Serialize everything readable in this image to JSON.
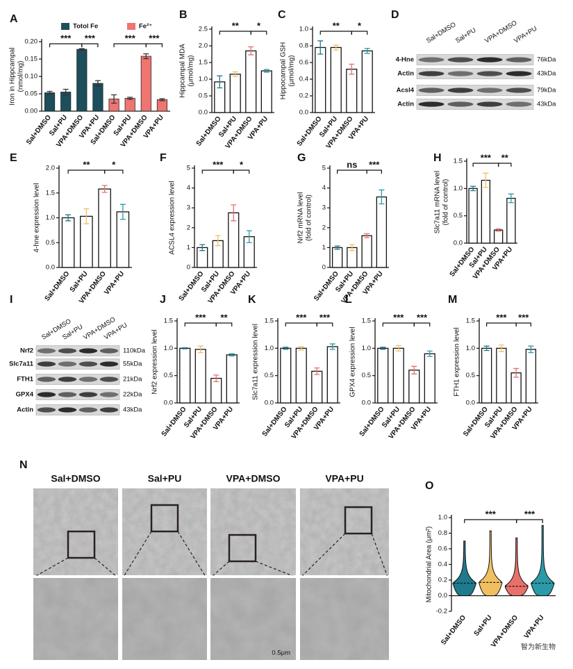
{
  "chart_data": [
    {
      "type": "bar",
      "panel": "A",
      "ylabel": [
        "Iron in Hippcampal",
        "(nmol/mg)"
      ],
      "categories": [
        "Sal+DMSO",
        "Sal+PU",
        "VPA+DMSO",
        "VPA+PU",
        "Sal+DMSO",
        "Sal+PU",
        "VPA+DMSO",
        "VPA+PU"
      ],
      "series": [
        {
          "name": "Totol Fe",
          "color": "#1d4e5c",
          "values": [
            0.053,
            0.055,
            0.178,
            0.08,
            null,
            null,
            null,
            null
          ],
          "errors": [
            0.004,
            0.008,
            0.002,
            0.008,
            null,
            null,
            null,
            null
          ]
        },
        {
          "name": "Fe²⁺",
          "color": "#f07470",
          "values": [
            null,
            null,
            null,
            null,
            0.035,
            0.037,
            0.158,
            0.033
          ],
          "errors": [
            null,
            null,
            null,
            null,
            0.012,
            0.003,
            0.007,
            0.003
          ]
        }
      ],
      "ylim": [
        0,
        0.2
      ],
      "yticks": [
        {
          "value": 0,
          "label": "0.00"
        },
        0.05,
        {
          "value": 0.1,
          "label": "0.10"
        },
        0.15,
        {
          "value": 0.2,
          "label": "0.20"
        }
      ],
      "sig": [
        {
          "text": "***",
          "between": [
            0,
            2
          ]
        },
        {
          "text": "***",
          "between": [
            2,
            3
          ]
        },
        {
          "text": "***",
          "between": [
            4,
            6
          ]
        },
        {
          "text": "***",
          "between": [
            6,
            7
          ]
        }
      ]
    },
    {
      "type": "bar",
      "panel": "B",
      "ylabel": [
        "Hippcampal MDA",
        "(μmol/mg)"
      ],
      "categories": [
        "Sal+DMSO",
        "Sal+PU",
        "VPA+DMSO",
        "VPA+PU"
      ],
      "values": [
        0.92,
        1.15,
        1.85,
        1.25
      ],
      "errors": [
        0.18,
        0.07,
        0.12,
        0.04
      ],
      "colors": [
        "#1e7a8c",
        "#f0c060",
        "#e8706a",
        "#2a9aa8"
      ],
      "ylim": [
        0,
        2.5
      ],
      "yticks": [
        {
          "value": 0,
          "label": "0.0"
        },
        0.5,
        {
          "value": 1,
          "label": "1.0"
        },
        1.5,
        {
          "value": 2,
          "label": "2.0"
        },
        2.5
      ],
      "sig": [
        {
          "text": "**",
          "between": [
            0,
            2
          ]
        },
        {
          "text": "*",
          "between": [
            2,
            3
          ]
        }
      ]
    },
    {
      "type": "bar",
      "panel": "C",
      "ylabel": [
        "Hippocampal GSH",
        "(μmol/mg)"
      ],
      "categories": [
        "Sal+DMSO",
        "Sal+PU",
        "VPA+DMSO",
        "VPA+PU"
      ],
      "values": [
        0.78,
        0.78,
        0.52,
        0.74
      ],
      "errors": [
        0.08,
        0.03,
        0.06,
        0.03
      ],
      "colors": [
        "#1e7a8c",
        "#f0c060",
        "#e8706a",
        "#2a9aa8"
      ],
      "ylim": [
        0,
        1
      ],
      "yticks": [
        {
          "value": 0,
          "label": "0.0"
        },
        0.2,
        0.4,
        0.6,
        0.8,
        {
          "value": 1,
          "label": "1.0"
        }
      ],
      "sig": [
        {
          "text": "**",
          "between": [
            0,
            2
          ]
        },
        {
          "text": "*",
          "between": [
            2,
            3
          ]
        }
      ]
    },
    {
      "type": "bar",
      "panel": "E",
      "ylabel": [
        "4-hne expression level"
      ],
      "categories": [
        "Sal+DMSO",
        "Sal+PU",
        "VPA+DMSO",
        "VPA+PU"
      ],
      "values": [
        1.0,
        1.03,
        1.58,
        1.12
      ],
      "errors": [
        0.06,
        0.15,
        0.07,
        0.15
      ],
      "colors": [
        "#1e7a8c",
        "#f0c060",
        "#e8706a",
        "#2a9aa8"
      ],
      "ylim": [
        0,
        2
      ],
      "yticks": [
        {
          "value": 0,
          "label": "0.0"
        },
        0.5,
        {
          "value": 1,
          "label": "1.0"
        },
        1.5,
        {
          "value": 2,
          "label": "2.0"
        }
      ],
      "sig": [
        {
          "text": "**",
          "between": [
            0,
            2
          ]
        },
        {
          "text": "*",
          "between": [
            2,
            3
          ]
        }
      ]
    },
    {
      "type": "bar",
      "panel": "F",
      "ylabel": [
        "ACSL4 expression level"
      ],
      "categories": [
        "Sal+DMSO",
        "Sal+PU",
        "VPA+DMSO",
        "VPA+PU"
      ],
      "values": [
        1.0,
        1.35,
        2.75,
        1.55
      ],
      "errors": [
        0.15,
        0.25,
        0.4,
        0.3
      ],
      "colors": [
        "#1e7a8c",
        "#f0c060",
        "#e8706a",
        "#2a9aa8"
      ],
      "ylim": [
        0,
        5
      ],
      "yticks": [
        0,
        1,
        2,
        3,
        4,
        5
      ],
      "sig": [
        {
          "text": "***",
          "between": [
            0,
            2
          ]
        },
        {
          "text": "*",
          "between": [
            2,
            3
          ]
        }
      ]
    },
    {
      "type": "bar",
      "panel": "G",
      "ylabel": [
        "Nrf2 mRNA level",
        "(fold of control)"
      ],
      "categories": [
        "Sal+DMSO",
        "Sal+PU",
        "VPA+DMSO",
        "VPA+PU"
      ],
      "values": [
        1.0,
        1.0,
        1.6,
        3.55
      ],
      "errors": [
        0.08,
        0.15,
        0.1,
        0.35
      ],
      "colors": [
        "#1e7a8c",
        "#f0c060",
        "#e8706a",
        "#2a9aa8"
      ],
      "ylim": [
        0,
        5
      ],
      "yticks": [
        0,
        1,
        2,
        3,
        4,
        5
      ],
      "sig": [
        {
          "text": "ns",
          "between": [
            0,
            2
          ]
        },
        {
          "text": "***",
          "between": [
            2,
            3
          ]
        }
      ]
    },
    {
      "type": "bar",
      "panel": "H",
      "ylabel": [
        "Slc7a11 mRNA level",
        "(fold of control)"
      ],
      "categories": [
        "Sal+DMSO",
        "Sal+PU",
        "VPA+DMSO",
        "VPA+PU"
      ],
      "values": [
        1.0,
        1.15,
        0.24,
        0.82
      ],
      "errors": [
        0.04,
        0.13,
        0.02,
        0.08
      ],
      "colors": [
        "#1e7a8c",
        "#f0c060",
        "#e8706a",
        "#2a9aa8"
      ],
      "ylim": [
        0,
        1.5
      ],
      "yticks": [
        {
          "value": 0,
          "label": "0.0"
        },
        0.5,
        {
          "value": 1,
          "label": "1.0"
        },
        1.5
      ],
      "sig": [
        {
          "text": "***",
          "between": [
            0,
            2
          ]
        },
        {
          "text": "**",
          "between": [
            2,
            3
          ]
        }
      ]
    },
    {
      "type": "bar",
      "panel": "J",
      "ylabel": [
        "Nrf2 expression level"
      ],
      "categories": [
        "Sal+DMSO",
        "Sal+PU",
        "VPA+DMSO",
        "VPA+PU"
      ],
      "values": [
        1.0,
        0.98,
        0.45,
        0.88
      ],
      "errors": [
        0.01,
        0.06,
        0.06,
        0.02
      ],
      "colors": [
        "#1e7a8c",
        "#f0c060",
        "#e8706a",
        "#2a9aa8"
      ],
      "ylim": [
        0,
        1.5
      ],
      "yticks": [
        {
          "value": 0,
          "label": "0.0"
        },
        0.5,
        {
          "value": 1,
          "label": "1.0"
        },
        1.5
      ],
      "sig": [
        {
          "text": "***",
          "between": [
            0,
            2
          ]
        },
        {
          "text": "**",
          "between": [
            2,
            3
          ]
        }
      ]
    },
    {
      "type": "bar",
      "panel": "K",
      "ylabel": [
        "Slc7a11 expression level"
      ],
      "categories": [
        "Sal+DMSO",
        "Sal+PU",
        "VPA+DMSO",
        "VPA+PU"
      ],
      "values": [
        1.0,
        1.0,
        0.58,
        1.03
      ],
      "errors": [
        0.02,
        0.03,
        0.06,
        0.05
      ],
      "colors": [
        "#1e7a8c",
        "#f0c060",
        "#e8706a",
        "#2a9aa8"
      ],
      "ylim": [
        0,
        1.5
      ],
      "yticks": [
        {
          "value": 0,
          "label": "0.0"
        },
        0.5,
        {
          "value": 1,
          "label": "1.0"
        },
        1.5
      ],
      "sig": [
        {
          "text": "***",
          "between": [
            0,
            2
          ]
        },
        {
          "text": "***",
          "between": [
            2,
            3
          ]
        }
      ]
    },
    {
      "type": "bar",
      "panel": "L",
      "ylabel": [
        "GPX4 expression level"
      ],
      "categories": [
        "Sal+DMSO",
        "Sal+PU",
        "VPA+DMSO",
        "VPA+PU"
      ],
      "values": [
        1.0,
        1.0,
        0.6,
        0.9
      ],
      "errors": [
        0.02,
        0.05,
        0.07,
        0.05
      ],
      "colors": [
        "#1e7a8c",
        "#f0c060",
        "#e8706a",
        "#2a9aa8"
      ],
      "ylim": [
        0,
        1.5
      ],
      "yticks": [
        {
          "value": 0,
          "label": "0.0"
        },
        0.5,
        {
          "value": 1,
          "label": "1.0"
        },
        1.5
      ],
      "sig": [
        {
          "text": "***",
          "between": [
            0,
            2
          ]
        },
        {
          "text": "***",
          "between": [
            2,
            3
          ]
        }
      ]
    },
    {
      "type": "bar",
      "panel": "M",
      "ylabel": [
        "FTH1 expression level"
      ],
      "categories": [
        "Sal+DMSO",
        "Sal+PU",
        "VPA+DMSO",
        "VPA+PU"
      ],
      "values": [
        1.0,
        1.0,
        0.55,
        0.98
      ],
      "errors": [
        0.04,
        0.06,
        0.08,
        0.06
      ],
      "colors": [
        "#1e7a8c",
        "#f0c060",
        "#e8706a",
        "#2a9aa8"
      ],
      "ylim": [
        0,
        1.5
      ],
      "yticks": [
        {
          "value": 0,
          "label": "0.0"
        },
        0.5,
        {
          "value": 1,
          "label": "1.0"
        },
        1.5
      ],
      "sig": [
        {
          "text": "***",
          "between": [
            0,
            2
          ]
        },
        {
          "text": "***",
          "between": [
            2,
            3
          ]
        }
      ]
    },
    {
      "type": "violin",
      "panel": "O",
      "ylabel": [
        "Mitochondrial Area (μm²)"
      ],
      "categories": [
        "Sal+DMSO",
        "Sal+PU",
        "VPA+DMSO",
        "VPA+PU"
      ],
      "values": [
        0.16,
        0.17,
        0.12,
        0.16
      ],
      "max": [
        0.7,
        0.83,
        0.74,
        0.9
      ],
      "colors": [
        "#1e7a8c",
        "#f0c060",
        "#e8706a",
        "#2a9aa8"
      ],
      "ylim": [
        -0.2,
        1
      ],
      "yticks": [
        -0.2,
        {
          "value": 0,
          "label": "0.0"
        },
        0.2,
        0.4,
        0.6,
        0.8,
        {
          "value": 1,
          "label": "1.0"
        }
      ],
      "sig": [
        {
          "text": "***",
          "between": [
            0,
            2
          ]
        },
        {
          "text": "***",
          "between": [
            2,
            3
          ]
        }
      ]
    }
  ],
  "blots": [
    {
      "panel": "D",
      "lanes": [
        "Sal+DMSO",
        "Sal+PU",
        "VPA+DMSO",
        "VPA+PU"
      ],
      "rows": [
        {
          "name": "4-Hne",
          "size": "76kDa"
        },
        {
          "name": "Actin",
          "size": "43kDa"
        },
        {
          "name": "Acsl4",
          "size": "79kDa"
        },
        {
          "name": "Actin",
          "size": "43kDa"
        }
      ]
    },
    {
      "panel": "I",
      "lanes": [
        "Sal+DMSO",
        "Sal+PU",
        "VPA+DMSO",
        "VPA+PU"
      ],
      "rows": [
        {
          "name": "Nrf2",
          "size": "110kDa"
        },
        {
          "name": "Slc7a11",
          "size": "55kDa"
        },
        {
          "name": "FTH1",
          "size": "21kDa"
        },
        {
          "name": "GPX4",
          "size": "22kDa"
        },
        {
          "name": "Actin",
          "size": "43kDa"
        }
      ]
    }
  ],
  "micrographs": {
    "panel": "N",
    "titles": [
      "Sal+DMSO",
      "Sal+PU",
      "VPA+DMSO",
      "VPA+PU"
    ],
    "scale": "0.5μm"
  },
  "watermark": "智为新生物"
}
